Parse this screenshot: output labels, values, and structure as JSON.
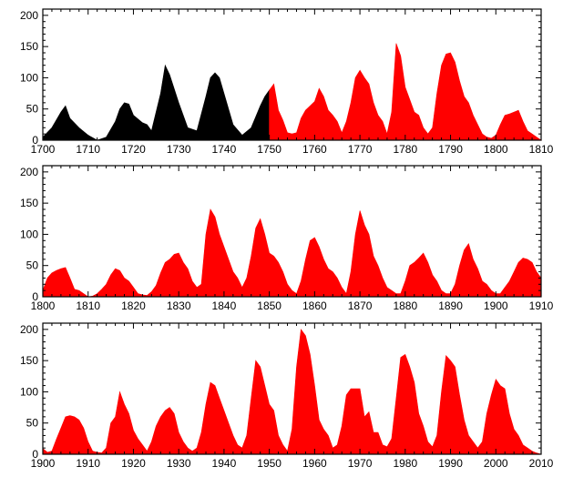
{
  "chart_data": [
    {
      "type": "area",
      "x_range": [
        1700,
        1810
      ],
      "ylim": [
        0,
        210
      ],
      "xticks": [
        "1700",
        "1710",
        "1720",
        "1730",
        "1740",
        "1750",
        "1760",
        "1770",
        "1780",
        "1790",
        "1800",
        "1810"
      ],
      "yticks": [
        "0",
        "50",
        "100",
        "150",
        "200"
      ],
      "series": [
        {
          "color": "#000000",
          "x": [
            1700,
            1702,
            1704,
            1705,
            1706,
            1708,
            1710,
            1712,
            1714,
            1716,
            1717,
            1718,
            1719,
            1720,
            1722,
            1723,
            1724,
            1726,
            1727,
            1728,
            1730,
            1732,
            1734,
            1736,
            1737,
            1738,
            1739,
            1740,
            1742,
            1744,
            1746,
            1748,
            1749,
            1750
          ],
          "y": [
            5,
            20,
            45,
            55,
            35,
            20,
            8,
            0,
            5,
            30,
            50,
            60,
            58,
            40,
            28,
            25,
            15,
            75,
            120,
            105,
            60,
            20,
            15,
            70,
            100,
            108,
            100,
            75,
            25,
            8,
            20,
            55,
            70,
            80
          ]
        },
        {
          "color": "#ff0000",
          "x": [
            1750,
            1751,
            1752,
            1753,
            1754,
            1755,
            1756,
            1757,
            1758,
            1759,
            1760,
            1761,
            1762,
            1763,
            1764,
            1765,
            1766,
            1767,
            1768,
            1769,
            1770,
            1771,
            1772,
            1773,
            1774,
            1775,
            1776,
            1777,
            1778,
            1779,
            1780,
            1781,
            1782,
            1783,
            1784,
            1785,
            1786,
            1787,
            1788,
            1789,
            1790,
            1791,
            1792,
            1793,
            1794,
            1795,
            1796,
            1797,
            1798,
            1799,
            1800,
            1801,
            1802,
            1803,
            1804,
            1805,
            1806,
            1807,
            1808,
            1809,
            1810
          ],
          "y": [
            80,
            90,
            48,
            32,
            12,
            10,
            12,
            35,
            48,
            55,
            62,
            83,
            70,
            48,
            40,
            30,
            12,
            30,
            60,
            100,
            112,
            100,
            90,
            60,
            40,
            30,
            10,
            45,
            155,
            135,
            85,
            65,
            45,
            40,
            20,
            10,
            20,
            75,
            120,
            138,
            140,
            125,
            95,
            70,
            60,
            40,
            25,
            10,
            5,
            3,
            8,
            25,
            40,
            42,
            45,
            48,
            30,
            15,
            10,
            5,
            0
          ]
        }
      ]
    },
    {
      "type": "area",
      "x_range": [
        1800,
        1910
      ],
      "ylim": [
        0,
        210
      ],
      "xticks": [
        "1800",
        "1810",
        "1820",
        "1830",
        "1840",
        "1850",
        "1860",
        "1870",
        "1880",
        "1890",
        "1900",
        "1910"
      ],
      "yticks": [
        "0",
        "50",
        "100",
        "150",
        "200"
      ],
      "series": [
        {
          "color": "#ff0000",
          "x": [
            1800,
            1801,
            1802,
            1803,
            1804,
            1805,
            1806,
            1807,
            1808,
            1809,
            1810,
            1811,
            1812,
            1813,
            1814,
            1815,
            1816,
            1817,
            1818,
            1819,
            1820,
            1821,
            1822,
            1823,
            1824,
            1825,
            1826,
            1827,
            1828,
            1829,
            1830,
            1831,
            1832,
            1833,
            1834,
            1835,
            1836,
            1837,
            1838,
            1839,
            1840,
            1841,
            1842,
            1843,
            1844,
            1845,
            1846,
            1847,
            1848,
            1849,
            1850,
            1851,
            1852,
            1853,
            1854,
            1855,
            1856,
            1857,
            1858,
            1859,
            1860,
            1861,
            1862,
            1863,
            1864,
            1865,
            1866,
            1867,
            1868,
            1869,
            1870,
            1871,
            1872,
            1873,
            1874,
            1875,
            1876,
            1877,
            1878,
            1879,
            1880,
            1881,
            1882,
            1883,
            1884,
            1885,
            1886,
            1887,
            1888,
            1889,
            1890,
            1891,
            1892,
            1893,
            1894,
            1895,
            1896,
            1897,
            1898,
            1899,
            1900,
            1901,
            1902,
            1903,
            1904,
            1905,
            1906,
            1907,
            1908,
            1909,
            1910
          ],
          "y": [
            10,
            30,
            38,
            42,
            45,
            47,
            30,
            12,
            10,
            5,
            0,
            1,
            5,
            12,
            20,
            35,
            45,
            42,
            30,
            25,
            15,
            5,
            3,
            2,
            8,
            18,
            38,
            55,
            60,
            68,
            70,
            55,
            45,
            25,
            15,
            20,
            100,
            140,
            128,
            100,
            80,
            60,
            40,
            30,
            15,
            30,
            65,
            110,
            125,
            100,
            70,
            65,
            55,
            40,
            20,
            10,
            5,
            25,
            60,
            90,
            95,
            80,
            60,
            45,
            40,
            30,
            15,
            5,
            40,
            100,
            138,
            115,
            100,
            65,
            50,
            30,
            15,
            10,
            5,
            5,
            25,
            50,
            55,
            62,
            70,
            55,
            35,
            25,
            10,
            5,
            5,
            20,
            50,
            75,
            85,
            60,
            45,
            25,
            20,
            10,
            5,
            5,
            15,
            25,
            40,
            55,
            62,
            60,
            55,
            40,
            30
          ]
        }
      ]
    },
    {
      "type": "area",
      "x_range": [
        1900,
        2010
      ],
      "ylim": [
        0,
        210
      ],
      "xticks": [
        "1900",
        "1910",
        "1920",
        "1930",
        "1940",
        "1950",
        "1960",
        "1970",
        "1980",
        "1990",
        "2000",
        "2010"
      ],
      "yticks": [
        "0",
        "50",
        "100",
        "150",
        "200"
      ],
      "series": [
        {
          "color": "#ff0000",
          "x": [
            1900,
            1901,
            1902,
            1903,
            1904,
            1905,
            1906,
            1907,
            1908,
            1909,
            1910,
            1911,
            1912,
            1913,
            1914,
            1915,
            1916,
            1917,
            1918,
            1919,
            1920,
            1921,
            1922,
            1923,
            1924,
            1925,
            1926,
            1927,
            1928,
            1929,
            1930,
            1931,
            1932,
            1933,
            1934,
            1935,
            1936,
            1937,
            1938,
            1939,
            1940,
            1941,
            1942,
            1943,
            1944,
            1945,
            1946,
            1947,
            1948,
            1949,
            1950,
            1951,
            1952,
            1953,
            1954,
            1955,
            1956,
            1957,
            1958,
            1959,
            1960,
            1961,
            1962,
            1963,
            1964,
            1965,
            1966,
            1967,
            1968,
            1969,
            1970,
            1971,
            1972,
            1973,
            1974,
            1975,
            1976,
            1977,
            1978,
            1979,
            1980,
            1981,
            1982,
            1983,
            1984,
            1985,
            1986,
            1987,
            1988,
            1989,
            1990,
            1991,
            1992,
            1993,
            1994,
            1995,
            1996,
            1997,
            1998,
            1999,
            2000,
            2001,
            2002,
            2003,
            2004,
            2005,
            2006,
            2007,
            2008,
            2009,
            2010
          ],
          "y": [
            9,
            3,
            5,
            24,
            42,
            60,
            62,
            60,
            55,
            42,
            20,
            5,
            3,
            2,
            10,
            50,
            60,
            100,
            80,
            65,
            38,
            25,
            15,
            5,
            20,
            45,
            60,
            70,
            75,
            65,
            35,
            20,
            10,
            5,
            10,
            35,
            80,
            115,
            110,
            90,
            70,
            50,
            30,
            15,
            10,
            30,
            90,
            150,
            140,
            110,
            80,
            70,
            30,
            15,
            5,
            40,
            140,
            200,
            190,
            160,
            110,
            55,
            40,
            30,
            10,
            15,
            45,
            95,
            105,
            105,
            105,
            60,
            68,
            35,
            35,
            15,
            12,
            25,
            90,
            155,
            160,
            140,
            115,
            65,
            45,
            20,
            12,
            30,
            100,
            158,
            150,
            140,
            95,
            55,
            30,
            20,
            10,
            20,
            65,
            95,
            120,
            110,
            105,
            65,
            40,
            30,
            15,
            10,
            5,
            2,
            0
          ]
        }
      ]
    }
  ]
}
